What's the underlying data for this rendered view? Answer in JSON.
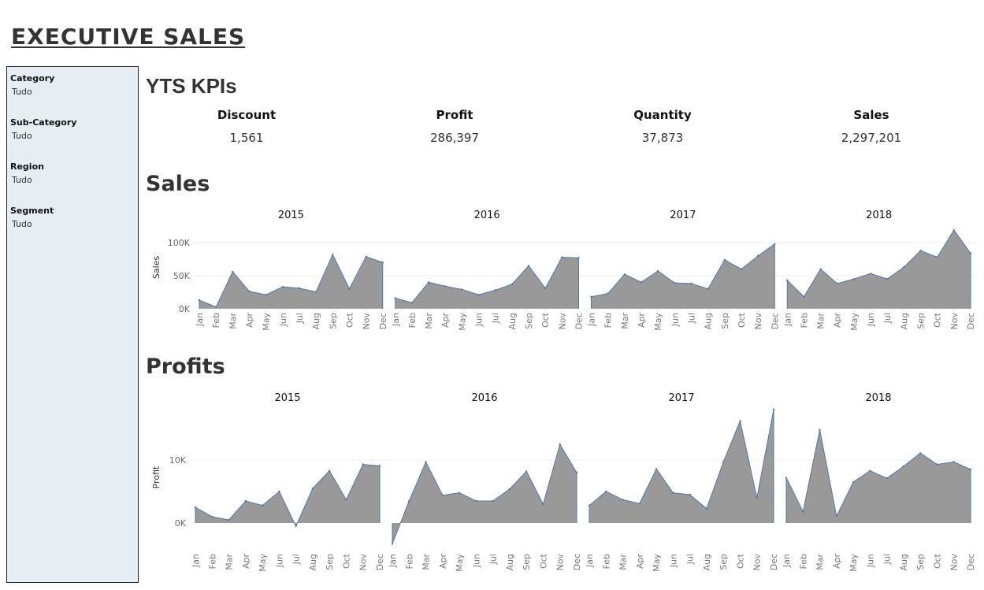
{
  "page": {
    "title": "EXECUTIVE SALES"
  },
  "filters": [
    {
      "label": "Category",
      "value": "Tudo"
    },
    {
      "label": "Sub-Category",
      "value": "Tudo"
    },
    {
      "label": "Region",
      "value": "Tudo"
    },
    {
      "label": "Segment",
      "value": "Tudo"
    }
  ],
  "kpis": {
    "title": "YTS KPIs",
    "items": [
      {
        "label": "Discount",
        "value": "1,561"
      },
      {
        "label": "Profit",
        "value": "286,397"
      },
      {
        "label": "Quantity",
        "value": "37,873"
      },
      {
        "label": "Sales",
        "value": "2,297,201"
      }
    ]
  },
  "sections": {
    "sales_title": "Sales",
    "profits_title": "Profits"
  },
  "colors": {
    "area_fill": "#999999",
    "area_stroke": "#4e79a7",
    "sidebar_bg": "#e6eef4",
    "gridline": "#eeeeee"
  },
  "chart_data": [
    {
      "type": "area",
      "title": "Sales",
      "ylabel": "Sales",
      "xlabel": "",
      "categories": [
        "Jan",
        "Feb",
        "Mar",
        "Apr",
        "May",
        "Jun",
        "Jul",
        "Aug",
        "Sep",
        "Oct",
        "Nov",
        "Dec"
      ],
      "panels": [
        "2015",
        "2016",
        "2017",
        "2018"
      ],
      "series": [
        {
          "year": "2015",
          "values": [
            13000,
            2500,
            56000,
            26000,
            21000,
            33000,
            31000,
            25500,
            82000,
            30000,
            79000,
            70000
          ]
        },
        {
          "year": "2016",
          "values": [
            16000,
            9000,
            40000,
            34000,
            29000,
            21000,
            28000,
            37000,
            65000,
            31000,
            78000,
            77000
          ]
        },
        {
          "year": "2017",
          "values": [
            18000,
            23000,
            52000,
            40000,
            57000,
            39000,
            38000,
            30000,
            74000,
            60000,
            80000,
            98000
          ]
        },
        {
          "year": "2018",
          "values": [
            43000,
            18000,
            60000,
            38000,
            45000,
            53000,
            45000,
            63000,
            88000,
            78000,
            119000,
            84000
          ]
        }
      ],
      "yticks": [
        {
          "value": 0,
          "label": "0K"
        },
        {
          "value": 50000,
          "label": "50K"
        },
        {
          "value": 100000,
          "label": "100K"
        }
      ],
      "ylim": [
        -5000,
        130000
      ],
      "grid": true
    },
    {
      "type": "area",
      "title": "Profits",
      "ylabel": "Profit",
      "xlabel": "",
      "categories": [
        "Jan",
        "Feb",
        "Mar",
        "Apr",
        "May",
        "Jun",
        "Jul",
        "Aug",
        "Sep",
        "Oct",
        "Nov",
        "Dec"
      ],
      "panels": [
        "2015",
        "2016",
        "2017",
        "2018"
      ],
      "series": [
        {
          "year": "2015",
          "values": [
            2500,
            1000,
            500,
            3500,
            2800,
            5000,
            -500,
            5500,
            8300,
            3700,
            9300,
            9100
          ]
        },
        {
          "year": "2016",
          "values": [
            -3300,
            3500,
            9700,
            4400,
            4800,
            3500,
            3500,
            5400,
            8200,
            3000,
            12500,
            8000
          ]
        },
        {
          "year": "2017",
          "values": [
            2800,
            5000,
            3700,
            3100,
            8600,
            4800,
            4500,
            2300,
            9700,
            16200,
            4000,
            18000
          ]
        },
        {
          "year": "2018",
          "values": [
            7200,
            1800,
            14800,
            1100,
            6500,
            8300,
            7100,
            9000,
            11100,
            9300,
            9700,
            8500
          ]
        }
      ],
      "yticks": [
        {
          "value": 0,
          "label": "0K"
        },
        {
          "value": 10000,
          "label": "10K"
        }
      ],
      "ylim": [
        -3500,
        18000
      ],
      "grid": true
    }
  ]
}
